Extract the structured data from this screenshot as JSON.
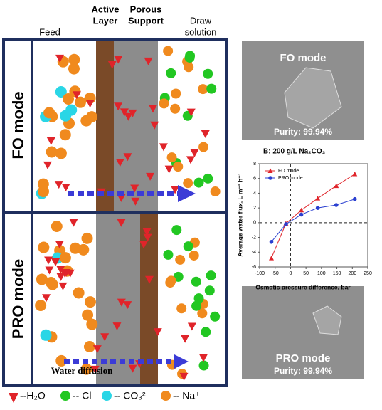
{
  "diagram": {
    "column_labels": {
      "feed": "Feed",
      "active_layer": [
        "Active",
        "Layer"
      ],
      "porous_support": [
        "Porous",
        "Support"
      ],
      "draw_solution": [
        "Draw",
        "solution"
      ]
    },
    "panels": [
      {
        "label": "FO mode"
      },
      {
        "label": "PRO mode",
        "arrow_label": "Water diffusion"
      }
    ],
    "legend": [
      "--H₂O",
      "-- Cl⁻",
      "-- CO₃²⁻",
      "-- Na⁺"
    ],
    "photos": [
      {
        "title": "FO mode",
        "purity": "Purity: 99.94%"
      },
      {
        "title": "PRO mode",
        "purity": "Purity: 99.94%"
      }
    ]
  },
  "chart_data": {
    "type": "line",
    "title": "B: 200 g/L Na₂CO₃",
    "x_label": "Osmotic pressure difference, bar",
    "y_label": "Average water flux, L m⁻² h⁻¹",
    "xlim": [
      -100,
      250
    ],
    "xticks": [
      -100,
      -50,
      0,
      50,
      100,
      150,
      200,
      250
    ],
    "ylim": [
      -6,
      8
    ],
    "yticks": [
      -6,
      -4,
      -2,
      0,
      2,
      4,
      6,
      8
    ],
    "legend": "upper left",
    "series": [
      {
        "name": "FO mode",
        "color": "#e0242a",
        "marker": "triangle",
        "x": [
          -62,
          -15,
          35,
          88,
          148,
          208
        ],
        "values": [
          -4.8,
          -0.1,
          1.7,
          3.3,
          5.0,
          6.6
        ]
      },
      {
        "name": "PRO mode",
        "color": "#2a3fd0",
        "marker": "circle",
        "x": [
          -62,
          -15,
          35,
          88,
          148,
          208
        ],
        "values": [
          -2.6,
          -0.2,
          1.1,
          2.0,
          2.4,
          3.2
        ]
      }
    ]
  }
}
